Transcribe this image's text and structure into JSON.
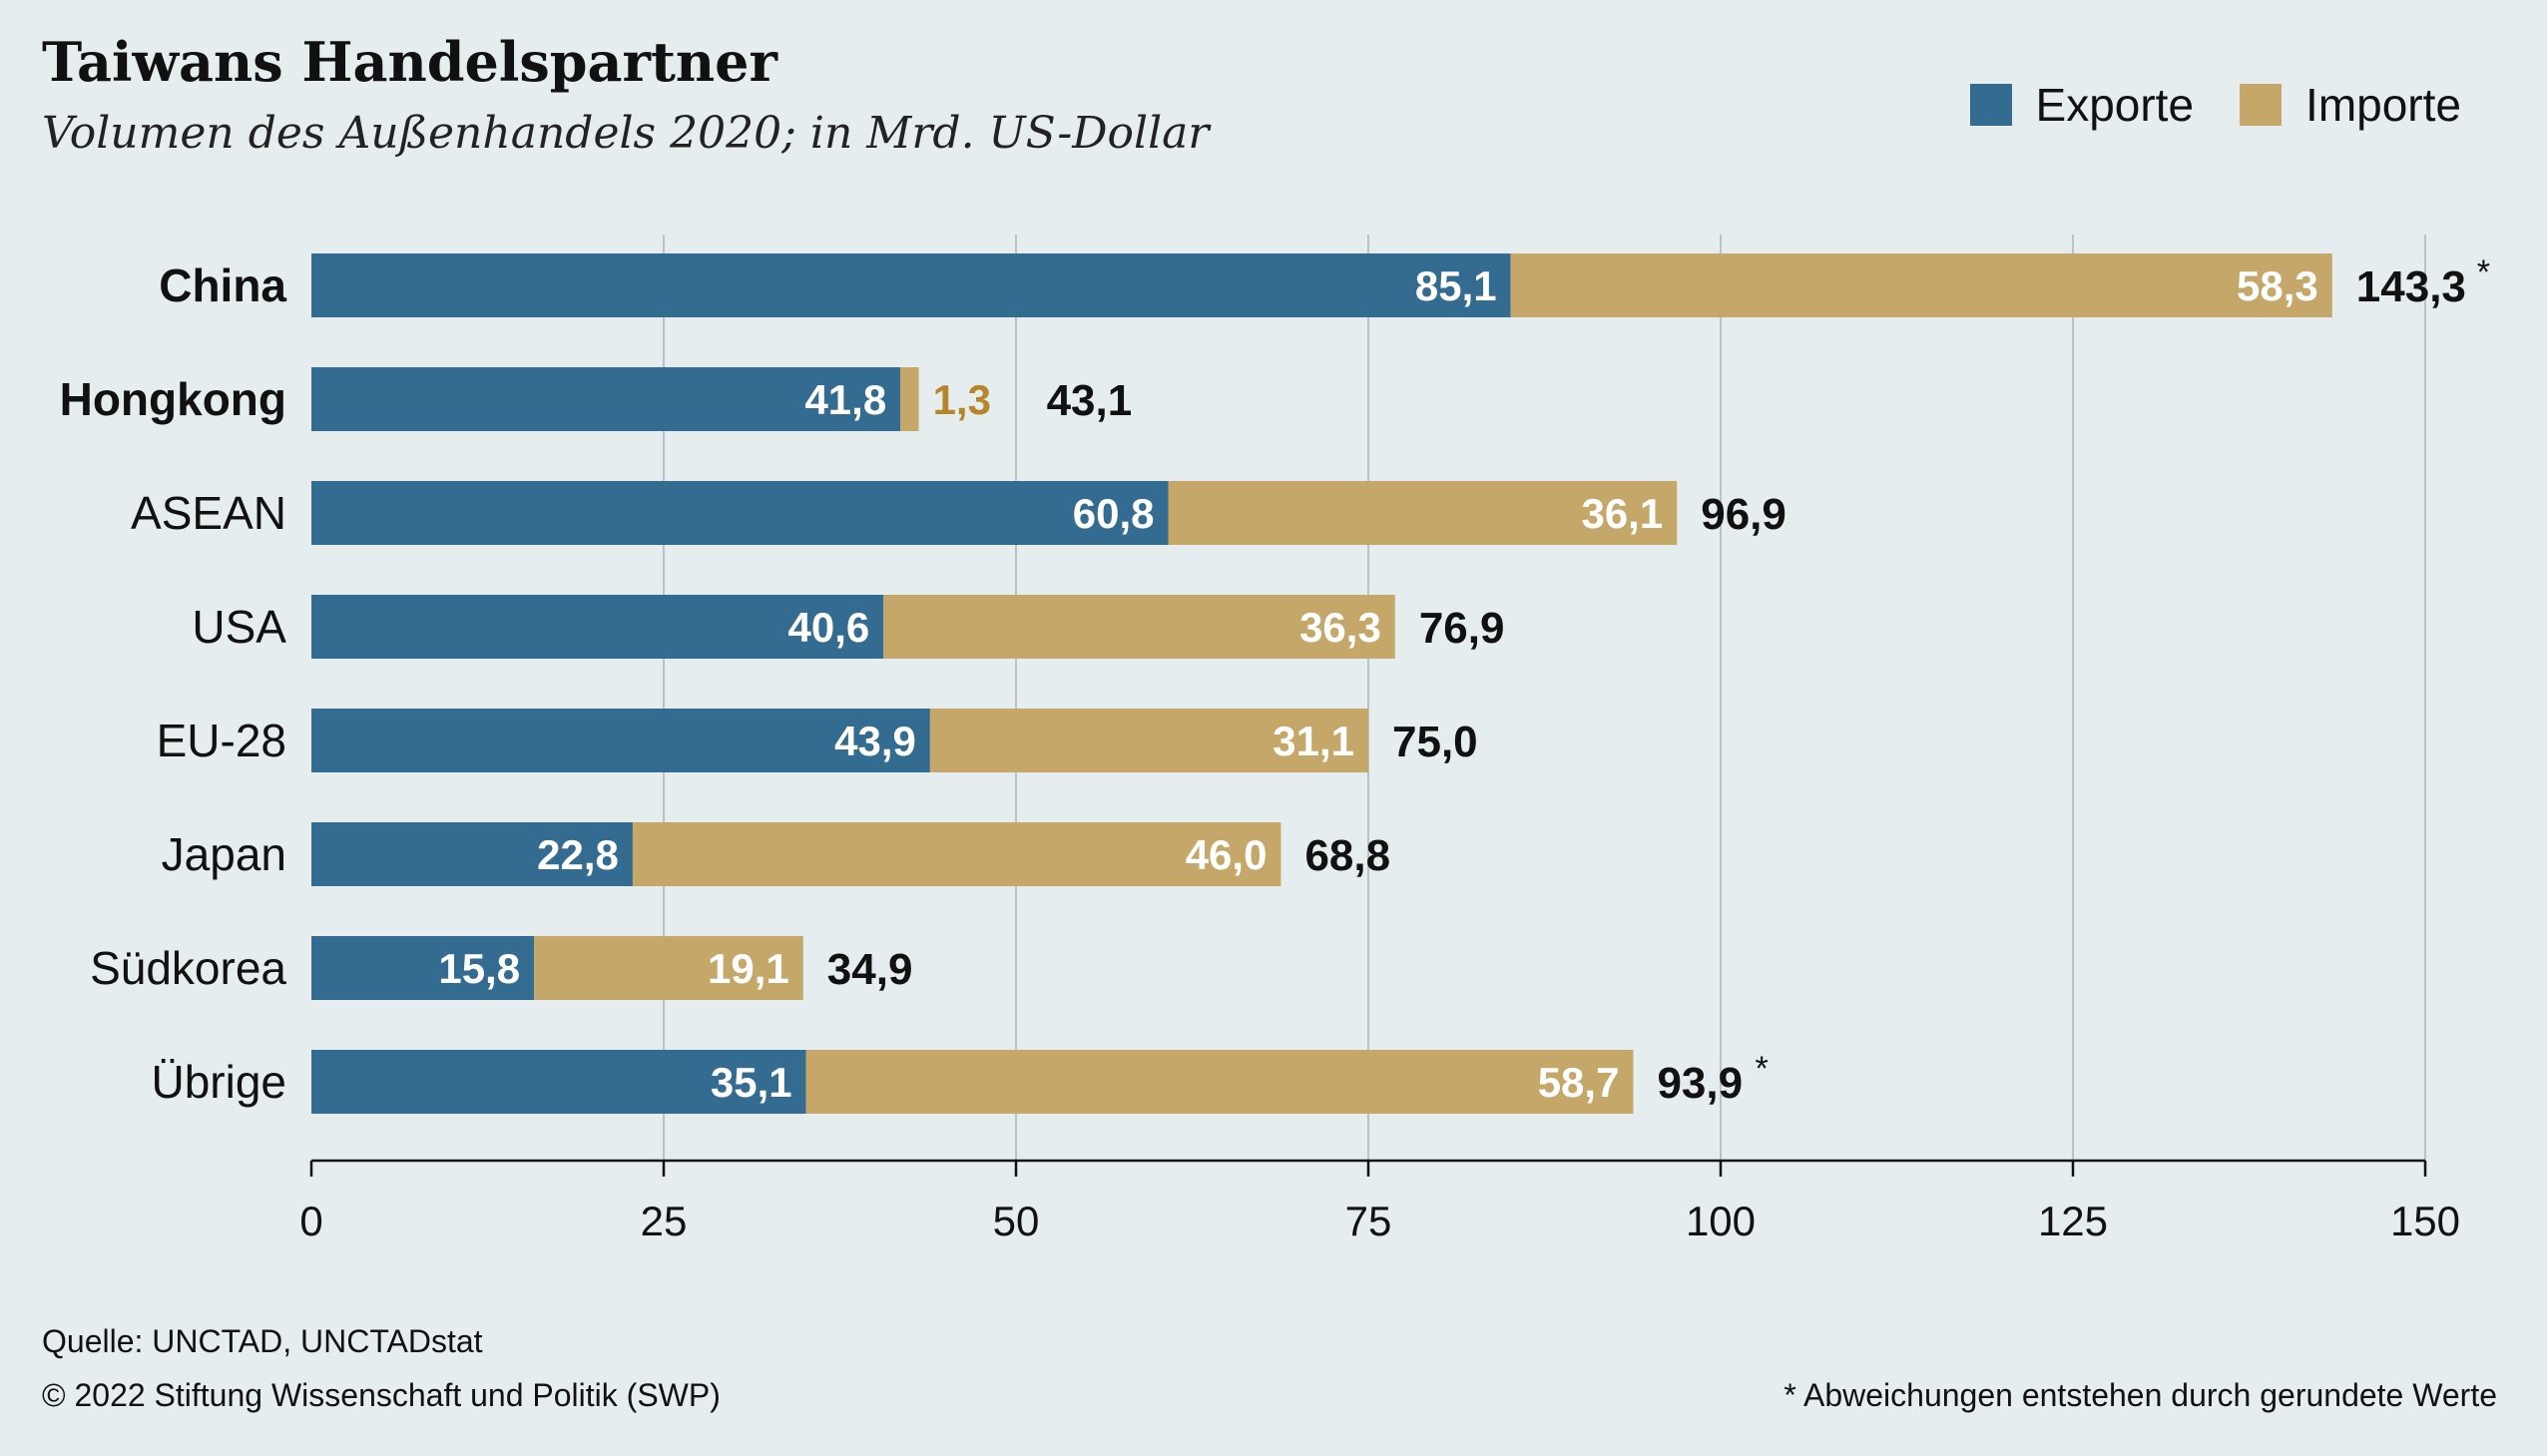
{
  "header": {
    "title": "Taiwans Handelspartner",
    "subtitle": "Volumen des Außenhandels 2020; in Mrd. US-Dollar"
  },
  "legend": {
    "exports_label": "Exporte",
    "imports_label": "Importe"
  },
  "colors": {
    "exports": "#336b91",
    "imports": "#c5a869",
    "small_import_label": "#b8862a",
    "grid": "#b9c2c6",
    "background": "#e5edef"
  },
  "chart_data": {
    "type": "bar",
    "orientation": "horizontal",
    "stacked": true,
    "categories": [
      "China",
      "Hongkong",
      "ASEAN",
      "USA",
      "EU-28",
      "Japan",
      "Südkorea",
      "Übrige"
    ],
    "bold_categories": [
      "China",
      "Hongkong"
    ],
    "series": [
      {
        "name": "Exporte",
        "values": [
          85.1,
          41.8,
          60.8,
          40.6,
          43.9,
          22.8,
          15.8,
          35.1
        ],
        "labels": [
          "85,1",
          "41,8",
          "60,8",
          "40,6",
          "43,9",
          "22,8",
          "15,8",
          "35,1"
        ]
      },
      {
        "name": "Importe",
        "values": [
          58.3,
          1.3,
          36.1,
          36.3,
          31.1,
          46.0,
          19.1,
          58.7
        ],
        "labels": [
          "58,3",
          "1,3",
          "36,1",
          "36,3",
          "31,1",
          "46,0",
          "19,1",
          "58,7"
        ]
      }
    ],
    "totals": [
      "143,3",
      "43,1",
      "96,9",
      "76,9",
      "75,0",
      "68,8",
      "34,9",
      "93,9"
    ],
    "total_marks": [
      "*",
      "",
      "",
      "",
      "",
      "",
      "",
      "*"
    ],
    "xlim": [
      0,
      150
    ],
    "xticks": [
      0,
      25,
      50,
      75,
      100,
      125,
      150
    ],
    "grid": true,
    "legend_position": "top-right"
  },
  "footer": {
    "source": "Quelle: UNCTAD, UNCTADstat",
    "copyright": "© 2022 Stiftung Wissenschaft und Politik (SWP)",
    "footnote": "* Abweichungen entstehen durch gerundete Werte"
  }
}
